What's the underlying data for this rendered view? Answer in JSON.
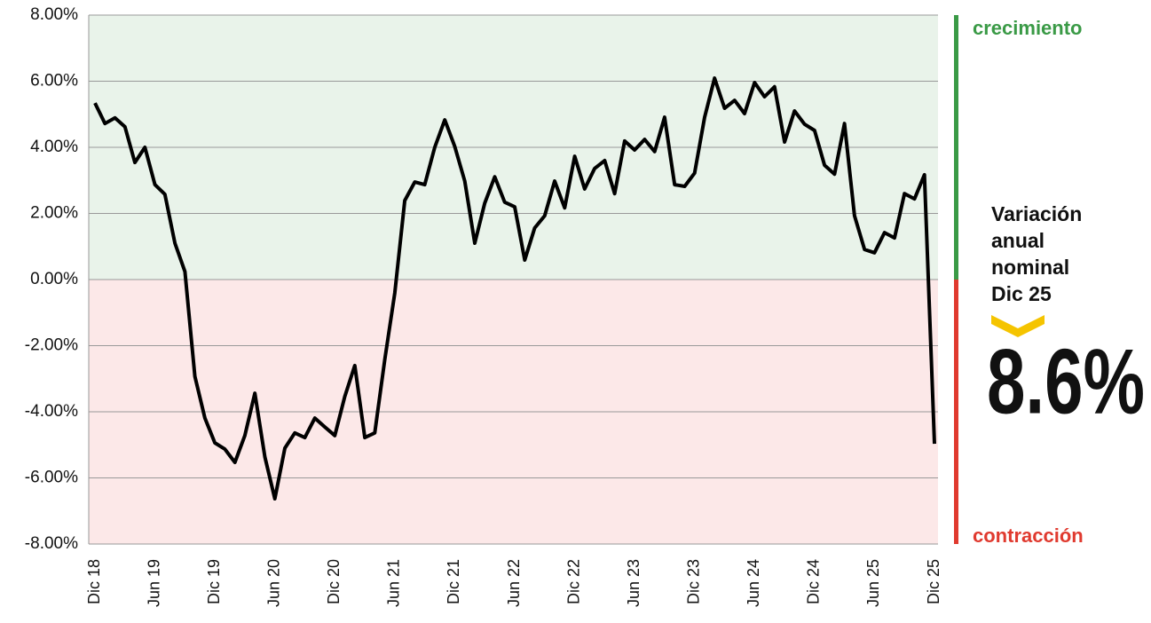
{
  "chart_data": {
    "type": "line",
    "categories": [
      "Dic 18",
      null,
      null,
      null,
      null,
      null,
      "Jun 19",
      null,
      null,
      null,
      null,
      null,
      "Dic 19",
      null,
      null,
      null,
      null,
      null,
      "Jun 20",
      null,
      null,
      null,
      null,
      null,
      "Dic 20",
      null,
      null,
      null,
      null,
      null,
      "Jun 21",
      null,
      null,
      null,
      null,
      null,
      "Dic 21",
      null,
      null,
      null,
      null,
      null,
      "Jun 22",
      null,
      null,
      null,
      null,
      null,
      "Dic 22",
      null,
      null,
      null,
      null,
      null,
      "Jun 23",
      null,
      null,
      null,
      null,
      null,
      "Dic 23",
      null,
      null,
      null,
      null,
      null,
      "Jun 24",
      null,
      null,
      null,
      null,
      null,
      "Dic 24",
      null,
      null,
      null,
      null,
      null,
      "Jun 25",
      null,
      null,
      null,
      null,
      null,
      "Dic 25"
    ],
    "values": [
      5.34,
      4.72,
      4.89,
      4.62,
      3.54,
      4.0,
      2.87,
      2.58,
      1.1,
      0.24,
      -2.93,
      -4.19,
      -4.94,
      -5.13,
      -5.53,
      -4.72,
      -3.44,
      -5.37,
      -6.63,
      -5.1,
      -4.64,
      -4.78,
      -4.19,
      -4.46,
      -4.72,
      -3.54,
      -2.6,
      -4.78,
      -4.64,
      -2.42,
      -0.4,
      2.39,
      2.95,
      2.87,
      4.0,
      4.83,
      4.03,
      2.98,
      1.1,
      2.31,
      3.11,
      2.34,
      2.2,
      0.59,
      1.56,
      1.93,
      2.98,
      2.17,
      3.73,
      2.74,
      3.36,
      3.6,
      2.6,
      4.19,
      3.92,
      4.24,
      3.87,
      4.91,
      2.87,
      2.82,
      3.22,
      4.91,
      6.09,
      5.18,
      5.42,
      5.02,
      5.96,
      5.53,
      5.83,
      4.16,
      5.1,
      4.7,
      4.51,
      3.46,
      3.19,
      4.72,
      1.93,
      0.91,
      0.81,
      1.42,
      1.26,
      2.6,
      2.44,
      3.17,
      -4.97
    ],
    "color": "#000000",
    "ylim": [
      -8,
      8
    ],
    "yticks": [
      {
        "value": -8,
        "label": "-8.00%"
      },
      {
        "value": -6,
        "label": "-6.00%"
      },
      {
        "value": -4,
        "label": "-4.00%"
      },
      {
        "value": -2,
        "label": "-2.00%"
      },
      {
        "value": 0,
        "label": "0.00%"
      },
      {
        "value": 2,
        "label": "2.00%"
      },
      {
        "value": 4,
        "label": "4.00%"
      },
      {
        "value": 6,
        "label": "6.00%"
      },
      {
        "value": 8,
        "label": "8.00%"
      }
    ],
    "grid": true,
    "positive_color": "#3a9a46",
    "negative_color": "#e03a2f",
    "positive_label": "crecimiento",
    "negative_label": "contracción",
    "callout_lines": [
      "Variación",
      "anual",
      "nominal",
      "Dic 25"
    ],
    "callout_value": "8.6%"
  }
}
